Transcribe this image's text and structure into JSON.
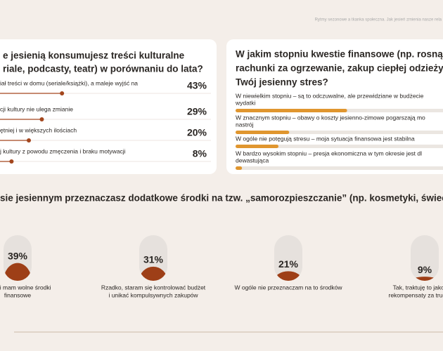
{
  "header": {
    "breadcrumb": "Rytmy sezonowe a tkanka społeczna. Jak jesień zmienia nasze rela"
  },
  "culture_card": {
    "title": [
      "e jesienią konsumujesz treści kulturalne",
      "riale, podcasty, teatr) w porównaniu do lata?"
    ],
    "items": [
      {
        "label": [
          "iał treści w domu (seriale/książki), a maleje wyjść na"
        ],
        "value": 43,
        "value_label": "43%"
      },
      {
        "label": [
          "cji kultury nie ulega zmianie"
        ],
        "value": 29,
        "value_label": "29%"
      },
      {
        "label": [
          "ętniej i w większych ilościach"
        ],
        "value": 20,
        "value_label": "20%"
      },
      {
        "label": [
          "j kultury z powodu zmęczenia i braku motywacji"
        ],
        "value": 8,
        "value_label": "8%"
      }
    ]
  },
  "finance_card": {
    "title": [
      "W jakim stopniu kwestie finansowe (np. rosnąc",
      "rachunki za ogrzewanie, zakup ciepłej odzieży",
      "Twój jesienny stres?"
    ],
    "items": [
      {
        "label": [
          "W niewielkim stopniu – są to odczuwalne, ale przewidziane w budżecie",
          "wydatki"
        ],
        "value": 52
      },
      {
        "label": [
          "W znacznym stopniu – obawy o koszty jesienno-zimowe pogarszają mo",
          "nastrój"
        ],
        "value": 25
      },
      {
        "label": [
          "W ogóle nie potęgują stresu – moja sytuacja finansowa jest stabilna"
        ],
        "value": 20
      },
      {
        "label": [
          "W bardzo wysokim stopniu – presja ekonomiczna w tym okresie jest dl",
          "dewastująca"
        ],
        "value": 3
      }
    ]
  },
  "pamper_section": {
    "title": "sie jesiennym przeznaczasz dodatkowe środki na tzw. „samorozpieszczanie” (np. kosmetyki, świeco",
    "items": [
      {
        "label": [
          "e, jeśli mam wolne środki",
          "finansowe"
        ],
        "value": 39,
        "value_label": "39%"
      },
      {
        "label": [
          "Rzadko, staram się kontrolować budżet",
          "i unikać kompulsywnych zakupów"
        ],
        "value": 31,
        "value_label": "31%"
      },
      {
        "label": [
          "W ogóle nie przeznaczam na to środków"
        ],
        "value": 21,
        "value_label": "21%"
      },
      {
        "label": [
          "Tak, traktuję to jako kluc",
          "rekompensaty za trudną au"
        ],
        "value": 9,
        "value_label": "9%"
      }
    ]
  }
}
